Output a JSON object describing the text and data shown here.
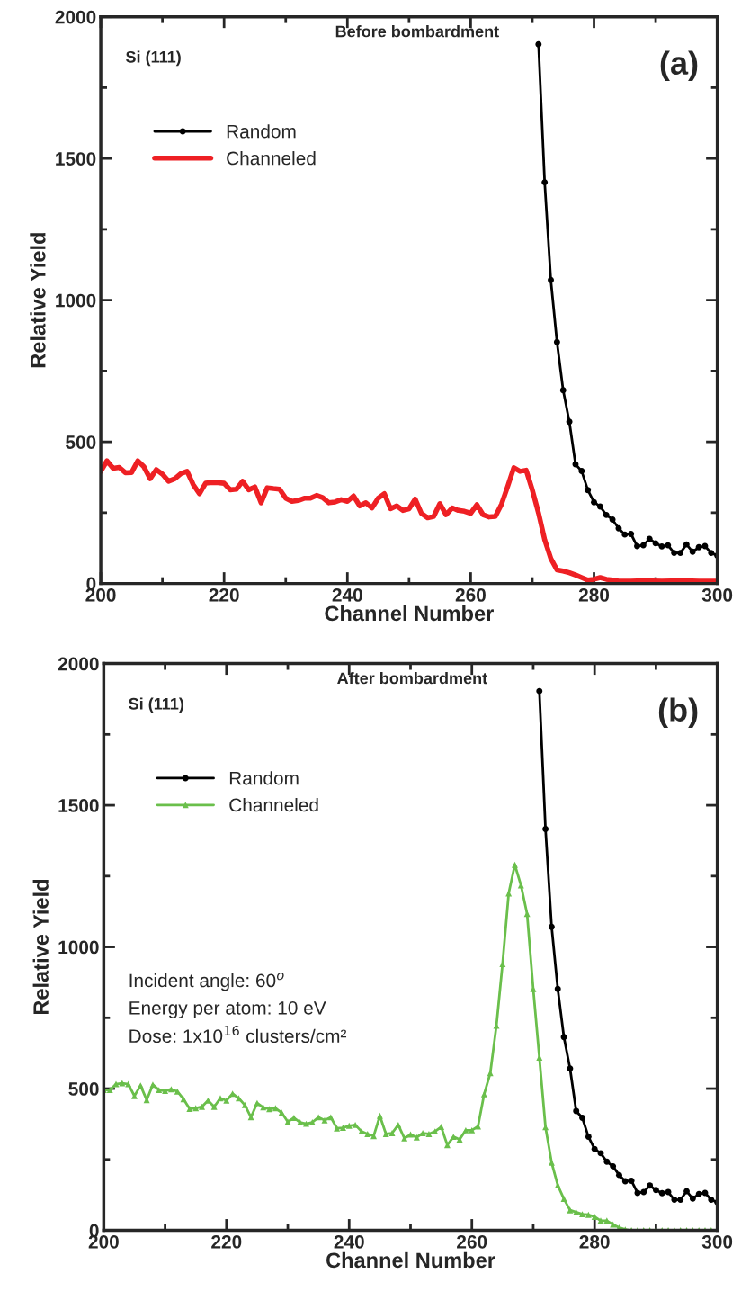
{
  "chart_data": [
    {
      "type": "line",
      "title": "Before bombardment",
      "xlabel": "Channel Number",
      "ylabel": "Relative Yield",
      "xlim": [
        200,
        300
      ],
      "ylim": [
        0,
        2000
      ],
      "xticks": [
        200,
        {
          "value": 210,
          "label": null
        },
        220,
        {
          "value": 230,
          "label": null
        },
        240,
        {
          "value": 250,
          "label": null
        },
        260,
        {
          "value": 270,
          "label": null
        },
        280,
        {
          "value": 290,
          "label": null
        },
        300
      ],
      "yticks": [
        0,
        {
          "value": 250,
          "label": null
        },
        500,
        {
          "value": 750,
          "label": null
        },
        1000,
        {
          "value": 1250,
          "label": null
        },
        1500,
        {
          "value": 1750,
          "label": null
        },
        2000
      ],
      "legend": "top left",
      "grid": false,
      "annotations": [
        "Si (111)",
        "(a)"
      ],
      "series": [
        {
          "name": "Random",
          "color": "#000000",
          "marker": "circle",
          "line_style": "solid",
          "x": [
            271,
            272,
            273,
            274,
            275,
            276,
            277,
            278,
            279,
            280,
            281,
            282,
            283,
            284,
            285,
            286,
            287,
            288,
            289,
            290,
            291,
            292,
            293,
            294,
            295,
            296,
            297,
            298,
            299,
            300
          ],
          "values": [
            1903,
            1416,
            1071,
            852,
            682,
            571,
            421,
            397,
            330,
            287,
            272,
            242,
            226,
            195,
            173,
            175,
            132,
            135,
            158,
            142,
            131,
            135,
            108,
            108,
            138,
            112,
            128,
            132,
            108,
            99
          ]
        },
        {
          "name": "Channeled",
          "color": "#ee2024",
          "marker": "none",
          "line_style": "solid",
          "x": [
            200,
            201,
            202,
            203,
            204,
            205,
            206,
            207,
            208,
            209,
            210,
            211,
            212,
            213,
            214,
            215,
            216,
            217,
            218,
            219,
            220,
            221,
            222,
            223,
            224,
            225,
            226,
            227,
            228,
            229,
            230,
            231,
            232,
            233,
            234,
            235,
            236,
            237,
            238,
            239,
            240,
            241,
            242,
            243,
            244,
            245,
            246,
            247,
            248,
            249,
            250,
            251,
            252,
            253,
            254,
            255,
            256,
            257,
            258,
            259,
            260,
            261,
            262,
            263,
            264,
            265,
            266,
            267,
            268,
            269,
            270,
            271,
            272,
            273,
            274,
            275,
            276,
            277,
            278,
            279,
            280,
            281,
            282,
            283,
            284,
            286,
            288,
            291,
            294,
            297,
            300
          ],
          "values": [
            396,
            433,
            407,
            410,
            391,
            392,
            433,
            412,
            370,
            402,
            386,
            361,
            370,
            388,
            396,
            349,
            317,
            354,
            357,
            356,
            354,
            331,
            333,
            361,
            331,
            341,
            285,
            338,
            335,
            333,
            301,
            290,
            293,
            301,
            301,
            311,
            303,
            285,
            288,
            296,
            290,
            309,
            274,
            285,
            267,
            301,
            317,
            264,
            274,
            258,
            264,
            298,
            248,
            232,
            237,
            282,
            243,
            267,
            258,
            255,
            248,
            278,
            243,
            235,
            237,
            280,
            343,
            409,
            396,
            400,
            330,
            249,
            155,
            88,
            48,
            44,
            38,
            30,
            21,
            12,
            15,
            21,
            15,
            12,
            8,
            8,
            10,
            8,
            10,
            8,
            8
          ]
        }
      ]
    },
    {
      "type": "line",
      "title": "After bombardment",
      "xlabel": "Channel Number",
      "ylabel": "Relative Yield",
      "xlim": [
        200,
        300
      ],
      "ylim": [
        0,
        2000
      ],
      "xticks": [
        200,
        {
          "value": 210,
          "label": null
        },
        220,
        {
          "value": 230,
          "label": null
        },
        240,
        {
          "value": 250,
          "label": null
        },
        260,
        {
          "value": 270,
          "label": null
        },
        280,
        {
          "value": 290,
          "label": null
        },
        300
      ],
      "yticks": [
        0,
        {
          "value": 250,
          "label": null
        },
        500,
        {
          "value": 750,
          "label": null
        },
        1000,
        {
          "value": 1250,
          "label": null
        },
        1500,
        {
          "value": 1750,
          "label": null
        },
        2000
      ],
      "legend": "top left",
      "grid": false,
      "annotations": [
        "Si (111)",
        "(b)",
        "Incident angle: 60$^{o}$",
        "Energy per atom: 10 eV",
        "Dose: 1x10$^{16}$ clusters/cm²"
      ],
      "series": [
        {
          "name": "Random",
          "color": "#000000",
          "marker": "circle",
          "line_style": "solid",
          "x": [
            271,
            272,
            273,
            274,
            275,
            276,
            277,
            278,
            279,
            280,
            281,
            282,
            283,
            284,
            285,
            286,
            287,
            288,
            289,
            290,
            291,
            292,
            293,
            294,
            295,
            296,
            297,
            298,
            299,
            300
          ],
          "values": [
            1903,
            1416,
            1071,
            852,
            682,
            571,
            421,
            397,
            330,
            287,
            272,
            242,
            226,
            195,
            173,
            175,
            132,
            135,
            158,
            142,
            131,
            135,
            108,
            108,
            138,
            112,
            128,
            132,
            108,
            99
          ]
        },
        {
          "name": "Channeled",
          "color": "#6abf4b",
          "marker": "triangle",
          "line_style": "solid",
          "x": [
            200,
            201,
            202,
            203,
            204,
            205,
            206,
            207,
            208,
            209,
            210,
            211,
            212,
            213,
            214,
            215,
            216,
            217,
            218,
            219,
            220,
            221,
            222,
            223,
            224,
            225,
            226,
            227,
            228,
            229,
            230,
            231,
            232,
            233,
            234,
            235,
            236,
            237,
            238,
            239,
            240,
            241,
            242,
            243,
            244,
            245,
            246,
            247,
            248,
            249,
            250,
            251,
            252,
            253,
            254,
            255,
            256,
            257,
            258,
            259,
            260,
            261,
            262,
            263,
            264,
            265,
            266,
            267,
            268,
            269,
            270,
            271,
            272,
            273,
            274,
            275,
            276,
            277,
            278,
            279,
            280,
            281,
            282,
            283,
            284,
            285,
            286,
            287,
            288,
            289,
            290,
            291,
            292,
            293,
            294,
            295,
            296,
            297,
            298,
            299,
            300
          ],
          "values": [
            495,
            495,
            516,
            519,
            516,
            474,
            511,
            460,
            514,
            495,
            492,
            498,
            490,
            463,
            429,
            431,
            436,
            458,
            436,
            466,
            458,
            482,
            466,
            442,
            399,
            449,
            434,
            428,
            431,
            415,
            383,
            397,
            381,
            376,
            381,
            399,
            388,
            399,
            360,
            362,
            369,
            372,
            349,
            340,
            333,
            404,
            340,
            343,
            372,
            325,
            338,
            328,
            343,
            340,
            349,
            365,
            301,
            330,
            321,
            353,
            353,
            367,
            480,
            555,
            722,
            940,
            1189,
            1290,
            1218,
            1117,
            852,
            610,
            364,
            239,
            159,
            111,
            71,
            64,
            57,
            55,
            48,
            34,
            34,
            21,
            10,
            3,
            0,
            0,
            0,
            0,
            0,
            0,
            0,
            0,
            0,
            0,
            0,
            0,
            0,
            0,
            0
          ]
        }
      ]
    }
  ]
}
